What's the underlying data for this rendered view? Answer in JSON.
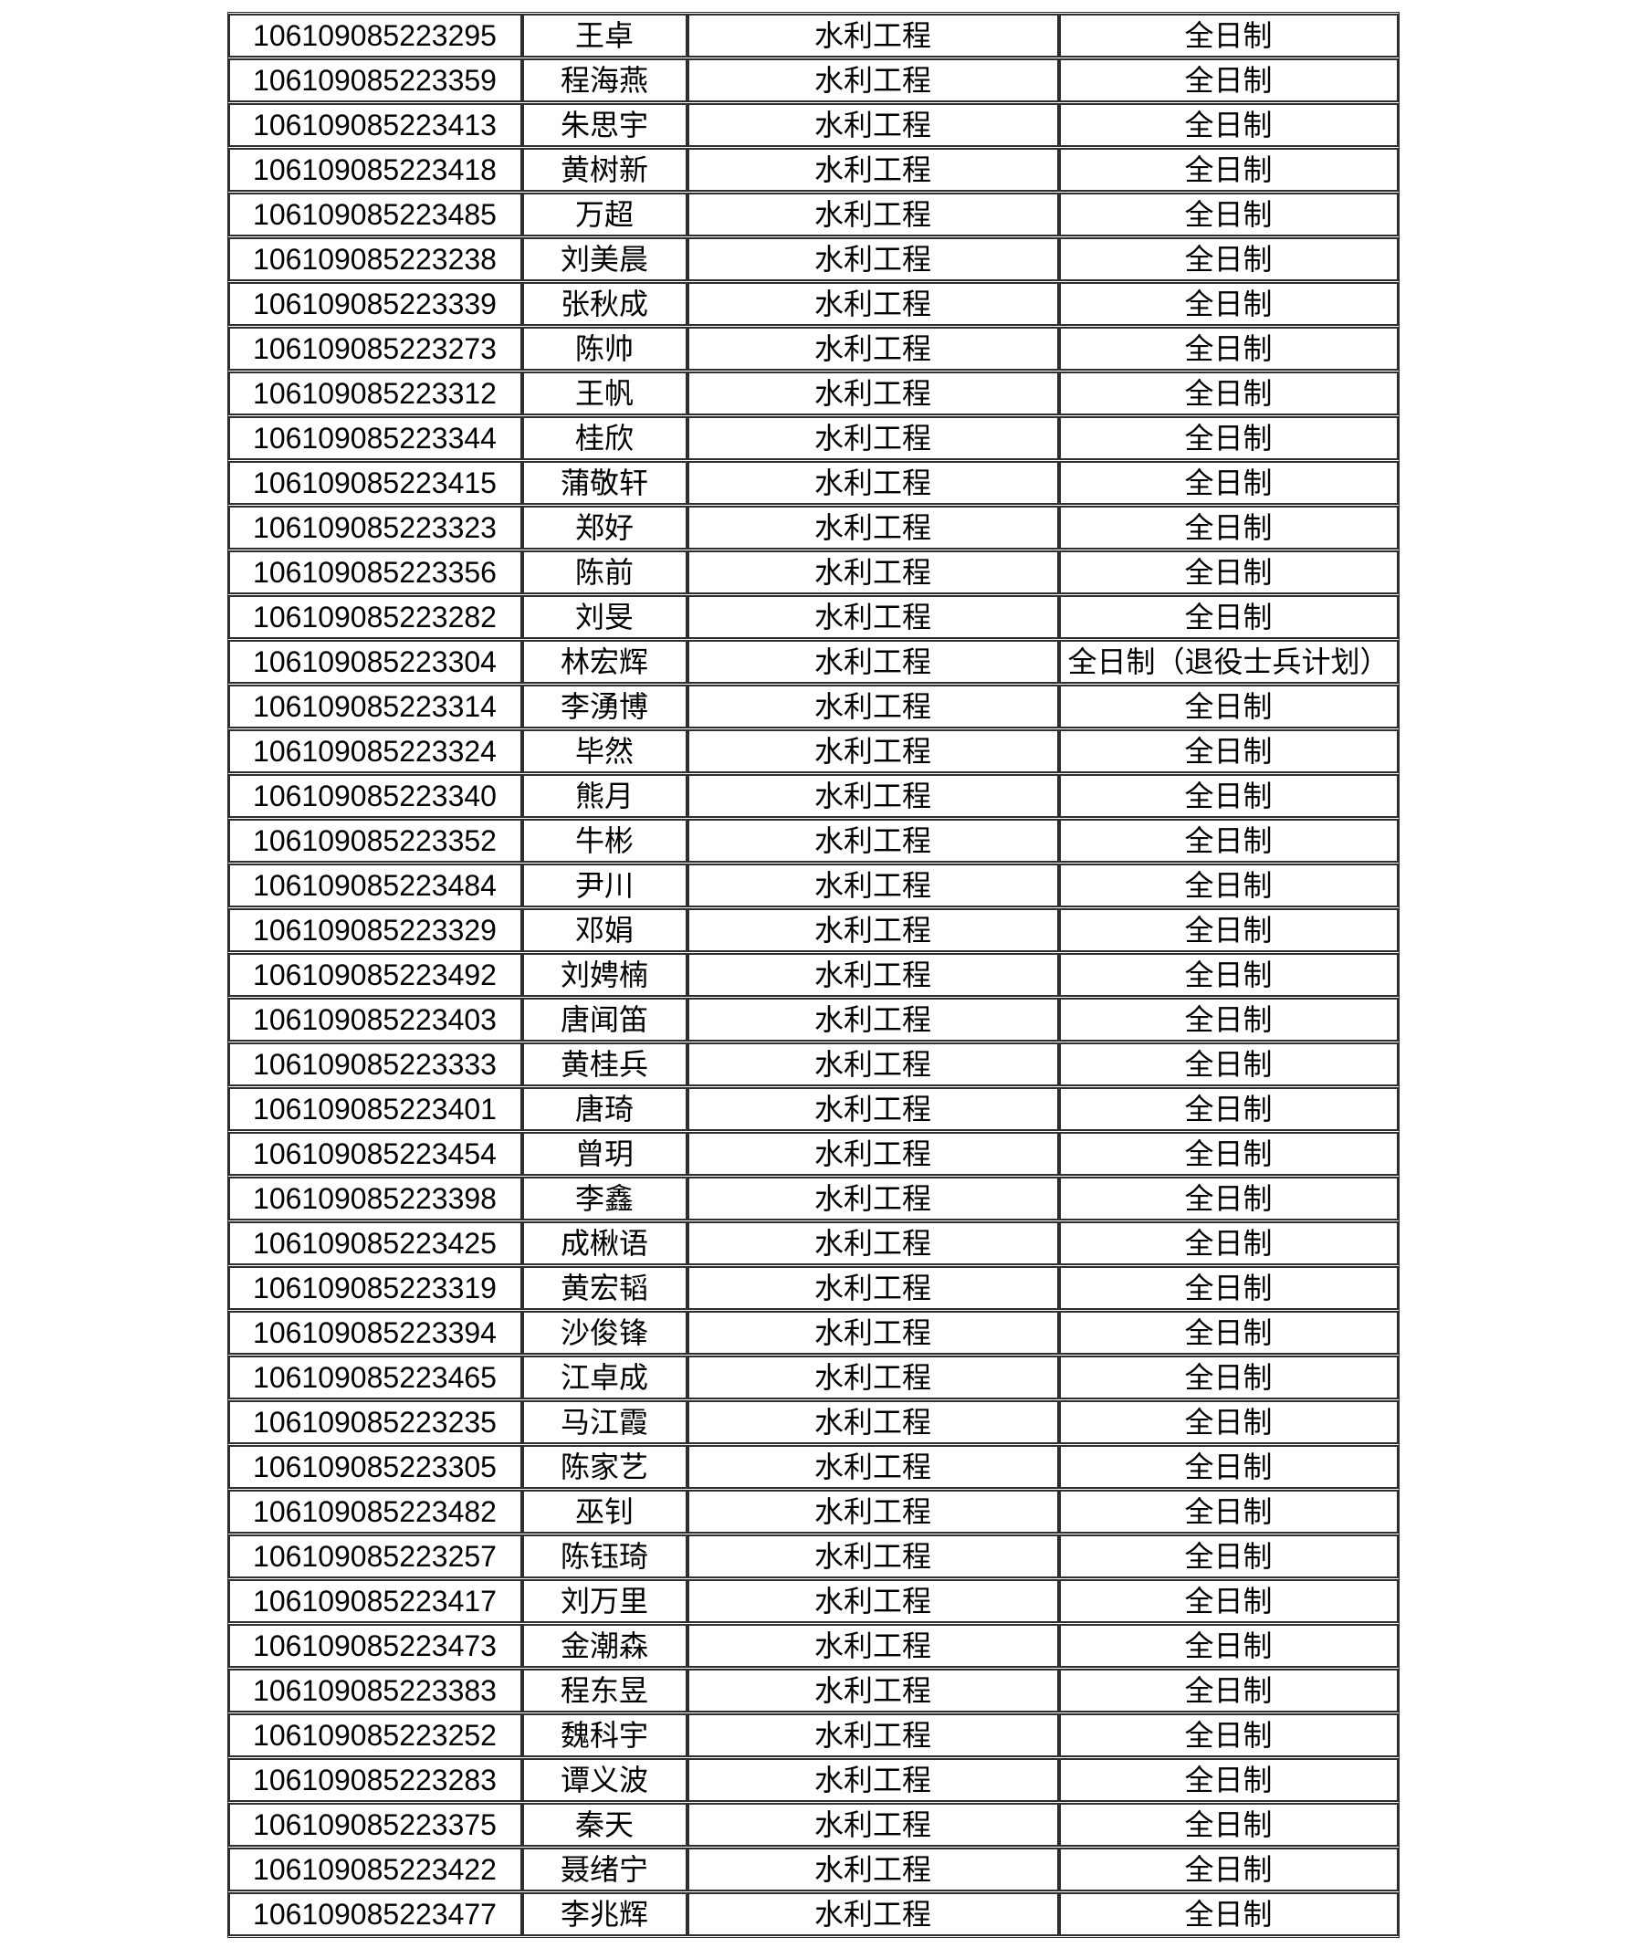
{
  "page": {
    "background_color": "#ffffff",
    "text_color": "#000000",
    "table_border_color": "#2e2e2e"
  },
  "table": {
    "column_keys": [
      "id",
      "name",
      "major",
      "mode"
    ],
    "rows": [
      {
        "id": "106109085223295",
        "name": "王卓",
        "major": "水利工程",
        "mode": "全日制"
      },
      {
        "id": "106109085223359",
        "name": "程海燕",
        "major": "水利工程",
        "mode": "全日制"
      },
      {
        "id": "106109085223413",
        "name": "朱思宇",
        "major": "水利工程",
        "mode": "全日制"
      },
      {
        "id": "106109085223418",
        "name": "黄树新",
        "major": "水利工程",
        "mode": "全日制"
      },
      {
        "id": "106109085223485",
        "name": "万超",
        "major": "水利工程",
        "mode": "全日制"
      },
      {
        "id": "106109085223238",
        "name": "刘美晨",
        "major": "水利工程",
        "mode": "全日制"
      },
      {
        "id": "106109085223339",
        "name": "张秋成",
        "major": "水利工程",
        "mode": "全日制"
      },
      {
        "id": "106109085223273",
        "name": "陈帅",
        "major": "水利工程",
        "mode": "全日制"
      },
      {
        "id": "106109085223312",
        "name": "王帆",
        "major": "水利工程",
        "mode": "全日制"
      },
      {
        "id": "106109085223344",
        "name": "桂欣",
        "major": "水利工程",
        "mode": "全日制"
      },
      {
        "id": "106109085223415",
        "name": "蒲敬轩",
        "major": "水利工程",
        "mode": "全日制"
      },
      {
        "id": "106109085223323",
        "name": "郑好",
        "major": "水利工程",
        "mode": "全日制"
      },
      {
        "id": "106109085223356",
        "name": "陈前",
        "major": "水利工程",
        "mode": "全日制"
      },
      {
        "id": "106109085223282",
        "name": "刘旻",
        "major": "水利工程",
        "mode": "全日制"
      },
      {
        "id": "106109085223304",
        "name": "林宏辉",
        "major": "水利工程",
        "mode": "全日制（退役士兵计划）"
      },
      {
        "id": "106109085223314",
        "name": "李湧博",
        "major": "水利工程",
        "mode": "全日制"
      },
      {
        "id": "106109085223324",
        "name": "毕然",
        "major": "水利工程",
        "mode": "全日制"
      },
      {
        "id": "106109085223340",
        "name": "熊月",
        "major": "水利工程",
        "mode": "全日制"
      },
      {
        "id": "106109085223352",
        "name": "牛彬",
        "major": "水利工程",
        "mode": "全日制"
      },
      {
        "id": "106109085223484",
        "name": "尹川",
        "major": "水利工程",
        "mode": "全日制"
      },
      {
        "id": "106109085223329",
        "name": "邓娟",
        "major": "水利工程",
        "mode": "全日制"
      },
      {
        "id": "106109085223492",
        "name": "刘娉楠",
        "major": "水利工程",
        "mode": "全日制"
      },
      {
        "id": "106109085223403",
        "name": "唐闻笛",
        "major": "水利工程",
        "mode": "全日制"
      },
      {
        "id": "106109085223333",
        "name": "黄桂兵",
        "major": "水利工程",
        "mode": "全日制"
      },
      {
        "id": "106109085223401",
        "name": "唐琦",
        "major": "水利工程",
        "mode": "全日制"
      },
      {
        "id": "106109085223454",
        "name": "曾玥",
        "major": "水利工程",
        "mode": "全日制"
      },
      {
        "id": "106109085223398",
        "name": "李鑫",
        "major": "水利工程",
        "mode": "全日制"
      },
      {
        "id": "106109085223425",
        "name": "成楸语",
        "major": "水利工程",
        "mode": "全日制"
      },
      {
        "id": "106109085223319",
        "name": "黄宏韬",
        "major": "水利工程",
        "mode": "全日制"
      },
      {
        "id": "106109085223394",
        "name": "沙俊锋",
        "major": "水利工程",
        "mode": "全日制"
      },
      {
        "id": "106109085223465",
        "name": "江卓成",
        "major": "水利工程",
        "mode": "全日制"
      },
      {
        "id": "106109085223235",
        "name": "马江霞",
        "major": "水利工程",
        "mode": "全日制"
      },
      {
        "id": "106109085223305",
        "name": "陈家艺",
        "major": "水利工程",
        "mode": "全日制"
      },
      {
        "id": "106109085223482",
        "name": "巫钊",
        "major": "水利工程",
        "mode": "全日制"
      },
      {
        "id": "106109085223257",
        "name": "陈钰琦",
        "major": "水利工程",
        "mode": "全日制"
      },
      {
        "id": "106109085223417",
        "name": "刘万里",
        "major": "水利工程",
        "mode": "全日制"
      },
      {
        "id": "106109085223473",
        "name": "金潮森",
        "major": "水利工程",
        "mode": "全日制"
      },
      {
        "id": "106109085223383",
        "name": "程东昱",
        "major": "水利工程",
        "mode": "全日制"
      },
      {
        "id": "106109085223252",
        "name": "魏科宇",
        "major": "水利工程",
        "mode": "全日制"
      },
      {
        "id": "106109085223283",
        "name": "谭义波",
        "major": "水利工程",
        "mode": "全日制"
      },
      {
        "id": "106109085223375",
        "name": "秦天",
        "major": "水利工程",
        "mode": "全日制"
      },
      {
        "id": "106109085223422",
        "name": "聂绪宁",
        "major": "水利工程",
        "mode": "全日制"
      },
      {
        "id": "106109085223477",
        "name": "李兆辉",
        "major": "水利工程",
        "mode": "全日制"
      }
    ]
  }
}
